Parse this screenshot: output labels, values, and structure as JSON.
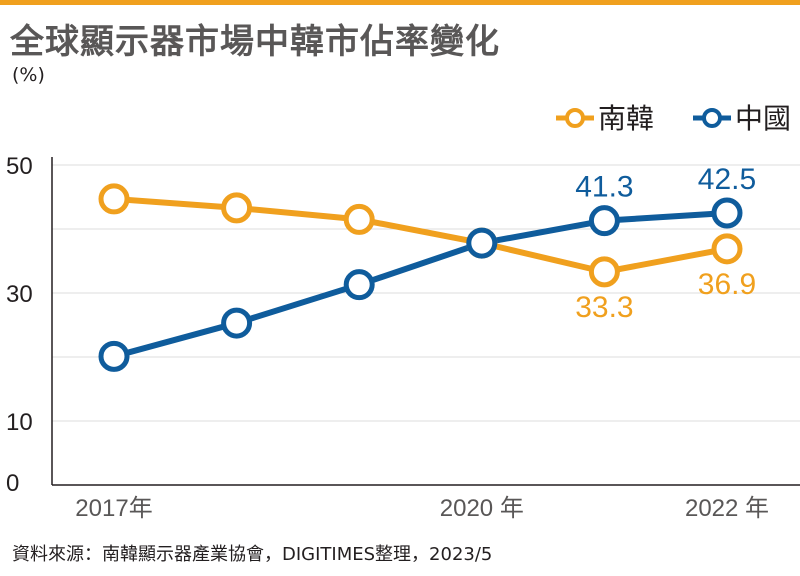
{
  "title": "全球顯示器市場中韓市佔率變化",
  "unit": "(%)",
  "source": "資料來源：南韓顯示器產業協會，DIGITIMES整理，2023/5",
  "colors": {
    "korea": "#f0a01e",
    "china": "#0f5c9c",
    "axis": "#231f20",
    "grid": "#dcdcdc",
    "accent_bar": "#f0a01e"
  },
  "chart_data": {
    "type": "line",
    "x": [
      2017,
      2018,
      2019,
      2020,
      2021,
      2022
    ],
    "x_tick_labels": [
      {
        "x": 2017,
        "label": "2017年"
      },
      {
        "x": 2020,
        "label": "2020 年"
      },
      {
        "x": 2022,
        "label": "2022 年"
      }
    ],
    "y_ticks": [
      0,
      10,
      30,
      50
    ],
    "y_minor_gridlines": [
      20,
      40
    ],
    "ylim": [
      0,
      50
    ],
    "legend_position": "top-right",
    "series": [
      {
        "name": "南韓",
        "color": "#f0a01e",
        "values": [
          44.7,
          43.3,
          41.5,
          37.8,
          33.3,
          36.9
        ],
        "data_labels": {
          "4": "33.3",
          "5": "36.9"
        }
      },
      {
        "name": "中國",
        "color": "#0f5c9c",
        "values": [
          20.1,
          25.3,
          31.3,
          37.8,
          41.3,
          42.5
        ],
        "data_labels": {
          "4": "41.3",
          "5": "42.5"
        }
      }
    ]
  }
}
